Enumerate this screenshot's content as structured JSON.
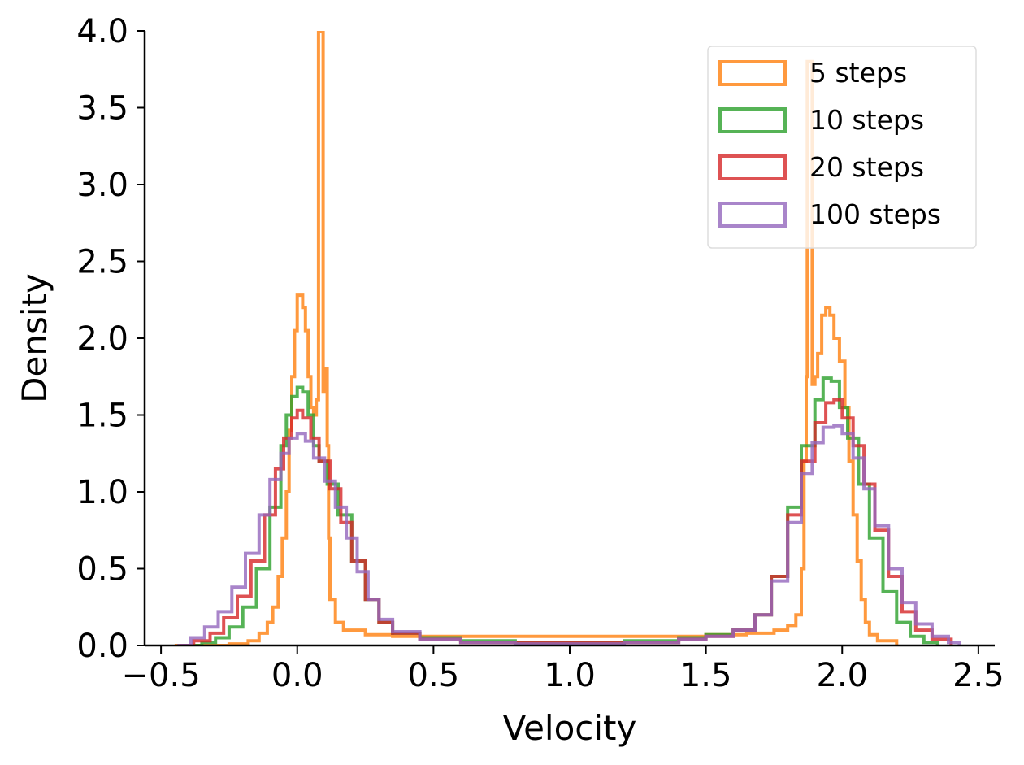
{
  "chart_data": {
    "type": "histogram-step",
    "title": "",
    "xlabel": "Velocity",
    "ylabel": "Density",
    "xlim": [
      -0.56,
      2.56
    ],
    "ylim": [
      0,
      4.0
    ],
    "xticks": [
      -0.5,
      0.0,
      0.5,
      1.0,
      1.5,
      2.0,
      2.5
    ],
    "xtick_labels": [
      "−0.5",
      "0.0",
      "0.5",
      "1.0",
      "1.5",
      "2.0",
      "2.5"
    ],
    "yticks": [
      0.0,
      0.5,
      1.0,
      1.5,
      2.0,
      2.5,
      3.0,
      3.5,
      4.0
    ],
    "ytick_labels": [
      "0.0",
      "0.5",
      "1.0",
      "1.5",
      "2.0",
      "2.5",
      "3.0",
      "3.5",
      "4.0"
    ],
    "legend_position": "top-right",
    "series": [
      {
        "name": "5 steps",
        "color": "#ff7f0e",
        "points": [
          [
            -0.45,
            0.0
          ],
          [
            -0.25,
            0.01
          ],
          [
            -0.18,
            0.03
          ],
          [
            -0.14,
            0.08
          ],
          [
            -0.11,
            0.15
          ],
          [
            -0.09,
            0.25
          ],
          [
            -0.07,
            0.45
          ],
          [
            -0.055,
            0.7
          ],
          [
            -0.04,
            1.0
          ],
          [
            -0.03,
            1.4
          ],
          [
            -0.02,
            1.75
          ],
          [
            -0.01,
            2.05
          ],
          [
            0.0,
            2.28
          ],
          [
            0.01,
            2.28
          ],
          [
            0.02,
            2.2
          ],
          [
            0.03,
            2.05
          ],
          [
            0.04,
            1.75
          ],
          [
            0.05,
            1.55
          ],
          [
            0.06,
            1.5
          ],
          [
            0.07,
            1.6
          ],
          [
            0.078,
            4.0
          ],
          [
            0.09,
            4.0
          ],
          [
            0.095,
            1.65
          ],
          [
            0.1,
            1.8
          ],
          [
            0.11,
            1.3
          ],
          [
            0.115,
            0.7
          ],
          [
            0.12,
            0.3
          ],
          [
            0.14,
            0.15
          ],
          [
            0.17,
            0.1
          ],
          [
            0.25,
            0.07
          ],
          [
            0.35,
            0.06
          ],
          [
            0.5,
            0.06
          ],
          [
            0.7,
            0.06
          ],
          [
            0.9,
            0.06
          ],
          [
            1.1,
            0.06
          ],
          [
            1.3,
            0.06
          ],
          [
            1.5,
            0.07
          ],
          [
            1.65,
            0.08
          ],
          [
            1.75,
            0.1
          ],
          [
            1.8,
            0.13
          ],
          [
            1.83,
            0.2
          ],
          [
            1.85,
            0.5
          ],
          [
            1.86,
            1.2
          ],
          [
            1.868,
            1.75
          ],
          [
            1.872,
            3.8
          ],
          [
            1.885,
            3.8
          ],
          [
            1.89,
            1.7
          ],
          [
            1.9,
            1.75
          ],
          [
            1.91,
            1.9
          ],
          [
            1.925,
            2.15
          ],
          [
            1.94,
            2.2
          ],
          [
            1.955,
            2.15
          ],
          [
            1.97,
            2.0
          ],
          [
            1.99,
            1.85
          ],
          [
            2.01,
            1.55
          ],
          [
            2.025,
            1.2
          ],
          [
            2.04,
            0.85
          ],
          [
            2.055,
            0.55
          ],
          [
            2.07,
            0.3
          ],
          [
            2.085,
            0.15
          ],
          [
            2.1,
            0.07
          ],
          [
            2.13,
            0.03
          ],
          [
            2.2,
            0.0
          ]
        ]
      },
      {
        "name": "10 steps",
        "color": "#2ca02c",
        "points": [
          [
            -0.42,
            0.0
          ],
          [
            -0.35,
            0.02
          ],
          [
            -0.3,
            0.05
          ],
          [
            -0.25,
            0.12
          ],
          [
            -0.2,
            0.25
          ],
          [
            -0.15,
            0.5
          ],
          [
            -0.1,
            0.9
          ],
          [
            -0.06,
            1.3
          ],
          [
            -0.04,
            1.5
          ],
          [
            -0.02,
            1.62
          ],
          [
            0.0,
            1.68
          ],
          [
            0.02,
            1.65
          ],
          [
            0.04,
            1.5
          ],
          [
            0.06,
            1.3
          ],
          [
            0.08,
            1.2
          ],
          [
            0.11,
            1.05
          ],
          [
            0.15,
            0.85
          ],
          [
            0.2,
            0.55
          ],
          [
            0.25,
            0.3
          ],
          [
            0.3,
            0.15
          ],
          [
            0.35,
            0.08
          ],
          [
            0.45,
            0.05
          ],
          [
            0.6,
            0.03
          ],
          [
            0.8,
            0.02
          ],
          [
            1.0,
            0.02
          ],
          [
            1.2,
            0.03
          ],
          [
            1.4,
            0.05
          ],
          [
            1.5,
            0.07
          ],
          [
            1.6,
            0.1
          ],
          [
            1.68,
            0.2
          ],
          [
            1.74,
            0.45
          ],
          [
            1.8,
            0.9
          ],
          [
            1.85,
            1.3
          ],
          [
            1.9,
            1.6
          ],
          [
            1.93,
            1.74
          ],
          [
            1.96,
            1.72
          ],
          [
            1.99,
            1.55
          ],
          [
            2.02,
            1.35
          ],
          [
            2.06,
            1.05
          ],
          [
            2.1,
            0.7
          ],
          [
            2.15,
            0.35
          ],
          [
            2.2,
            0.15
          ],
          [
            2.25,
            0.06
          ],
          [
            2.3,
            0.02
          ],
          [
            2.35,
            0.0
          ]
        ]
      },
      {
        "name": "20 steps",
        "color": "#d62728",
        "points": [
          [
            -0.43,
            0.0
          ],
          [
            -0.38,
            0.03
          ],
          [
            -0.32,
            0.08
          ],
          [
            -0.27,
            0.18
          ],
          [
            -0.22,
            0.32
          ],
          [
            -0.17,
            0.55
          ],
          [
            -0.12,
            0.85
          ],
          [
            -0.08,
            1.15
          ],
          [
            -0.05,
            1.35
          ],
          [
            -0.02,
            1.48
          ],
          [
            0.0,
            1.53
          ],
          [
            0.02,
            1.48
          ],
          [
            0.05,
            1.35
          ],
          [
            0.08,
            1.2
          ],
          [
            0.12,
            1.02
          ],
          [
            0.16,
            0.8
          ],
          [
            0.2,
            0.55
          ],
          [
            0.25,
            0.3
          ],
          [
            0.3,
            0.15
          ],
          [
            0.35,
            0.08
          ],
          [
            0.45,
            0.04
          ],
          [
            0.6,
            0.02
          ],
          [
            0.8,
            0.02
          ],
          [
            1.0,
            0.02
          ],
          [
            1.2,
            0.02
          ],
          [
            1.4,
            0.04
          ],
          [
            1.5,
            0.06
          ],
          [
            1.6,
            0.1
          ],
          [
            1.68,
            0.2
          ],
          [
            1.74,
            0.45
          ],
          [
            1.8,
            0.85
          ],
          [
            1.85,
            1.2
          ],
          [
            1.9,
            1.45
          ],
          [
            1.94,
            1.58
          ],
          [
            1.97,
            1.6
          ],
          [
            2.0,
            1.48
          ],
          [
            2.04,
            1.3
          ],
          [
            2.08,
            1.05
          ],
          [
            2.12,
            0.75
          ],
          [
            2.17,
            0.45
          ],
          [
            2.22,
            0.22
          ],
          [
            2.27,
            0.1
          ],
          [
            2.33,
            0.04
          ],
          [
            2.4,
            0.0
          ]
        ]
      },
      {
        "name": "100 steps",
        "color": "#9467bd",
        "points": [
          [
            -0.44,
            0.0
          ],
          [
            -0.39,
            0.05
          ],
          [
            -0.34,
            0.12
          ],
          [
            -0.29,
            0.22
          ],
          [
            -0.24,
            0.38
          ],
          [
            -0.19,
            0.6
          ],
          [
            -0.14,
            0.85
          ],
          [
            -0.1,
            1.08
          ],
          [
            -0.06,
            1.25
          ],
          [
            -0.03,
            1.35
          ],
          [
            0.0,
            1.38
          ],
          [
            0.03,
            1.33
          ],
          [
            0.06,
            1.22
          ],
          [
            0.1,
            1.07
          ],
          [
            0.14,
            0.9
          ],
          [
            0.18,
            0.7
          ],
          [
            0.22,
            0.48
          ],
          [
            0.26,
            0.3
          ],
          [
            0.3,
            0.17
          ],
          [
            0.35,
            0.09
          ],
          [
            0.45,
            0.04
          ],
          [
            0.6,
            0.02
          ],
          [
            0.8,
            0.01
          ],
          [
            1.0,
            0.01
          ],
          [
            1.2,
            0.02
          ],
          [
            1.4,
            0.04
          ],
          [
            1.5,
            0.06
          ],
          [
            1.6,
            0.1
          ],
          [
            1.68,
            0.2
          ],
          [
            1.74,
            0.42
          ],
          [
            1.8,
            0.8
          ],
          [
            1.85,
            1.12
          ],
          [
            1.89,
            1.32
          ],
          [
            1.93,
            1.42
          ],
          [
            1.97,
            1.43
          ],
          [
            2.0,
            1.38
          ],
          [
            2.04,
            1.22
          ],
          [
            2.08,
            1.02
          ],
          [
            2.12,
            0.78
          ],
          [
            2.17,
            0.5
          ],
          [
            2.22,
            0.28
          ],
          [
            2.27,
            0.14
          ],
          [
            2.33,
            0.06
          ],
          [
            2.39,
            0.02
          ],
          [
            2.43,
            0.0
          ]
        ]
      }
    ]
  }
}
